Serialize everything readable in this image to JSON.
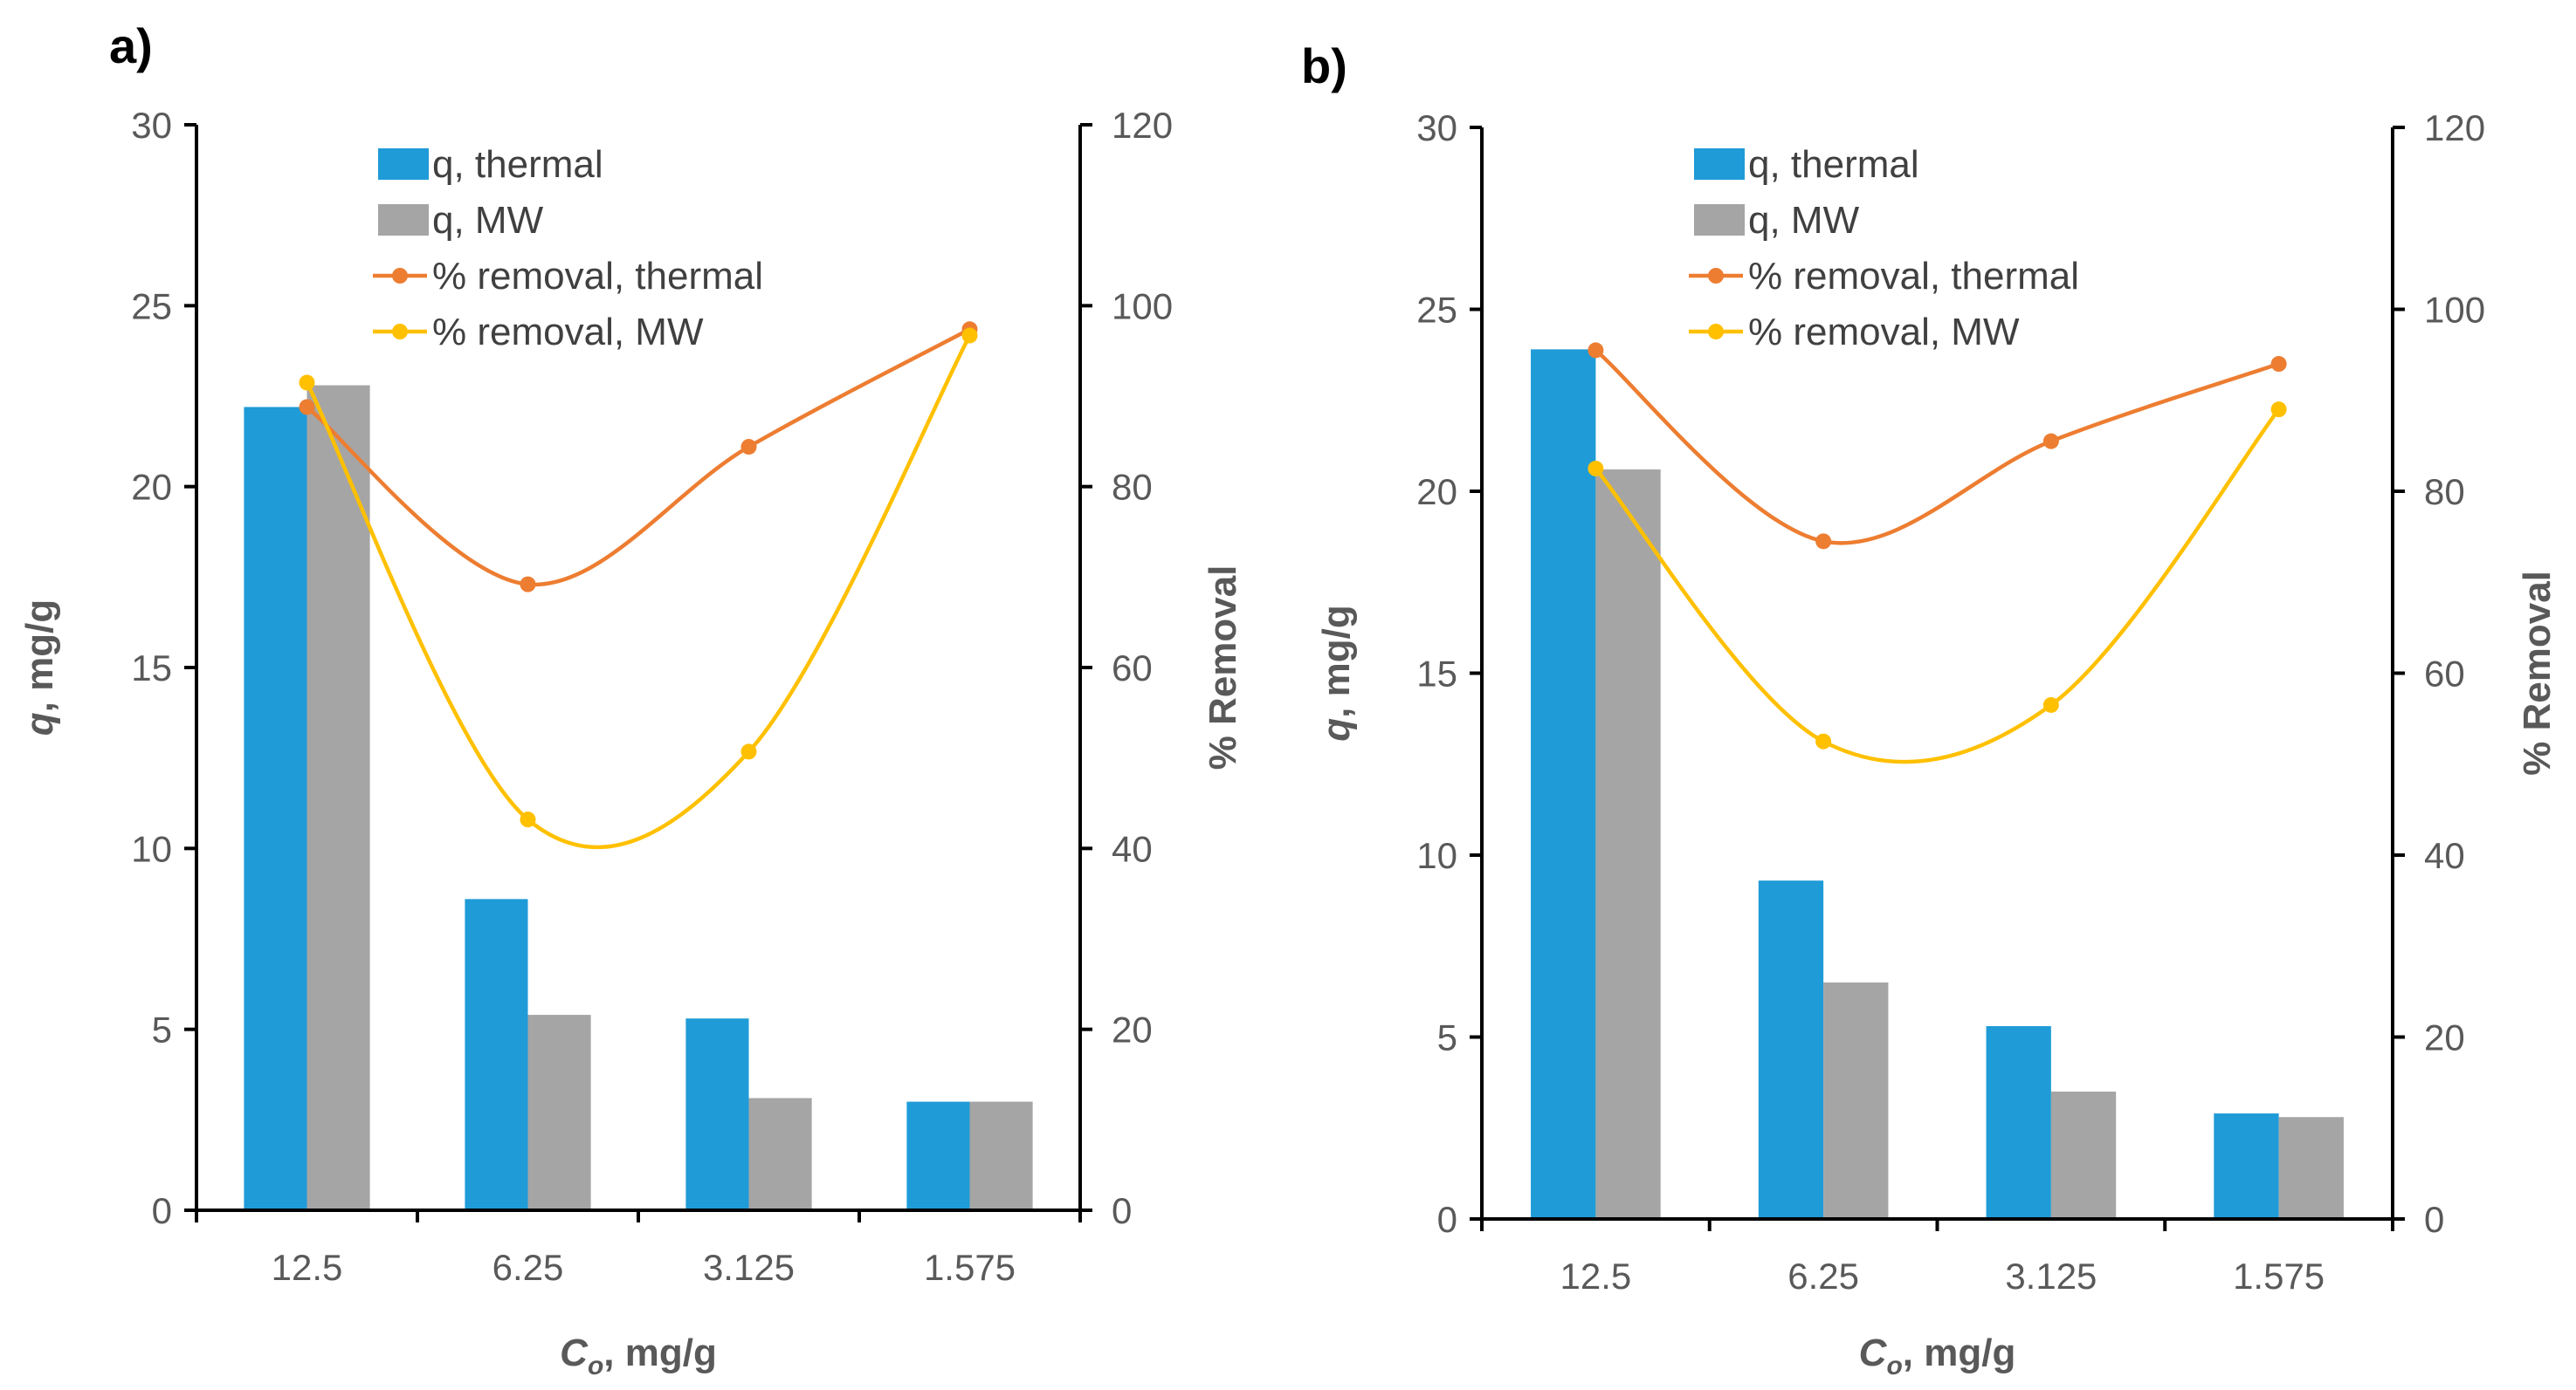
{
  "chart_data": [
    {
      "panel_label": "a)",
      "type": "bar",
      "categories": [
        "12.5",
        "6.25",
        "3.125",
        "1.575"
      ],
      "series": [
        {
          "name": "q, thermal",
          "kind": "bar",
          "axis": "left",
          "color": "#1f9bd7",
          "values": [
            22.2,
            8.6,
            5.3,
            3.0
          ]
        },
        {
          "name": "q, MW",
          "kind": "bar",
          "axis": "left",
          "color": "#a5a5a5",
          "values": [
            22.8,
            5.4,
            3.1,
            3.0
          ]
        },
        {
          "name": "% removal, thermal",
          "kind": "line",
          "axis": "right",
          "color": "#ed7d31",
          "values": [
            88.8,
            69.2,
            84.4,
            97.4
          ]
        },
        {
          "name": "% removal, MW",
          "kind": "line",
          "axis": "right",
          "color": "#ffc000",
          "values": [
            91.5,
            43.2,
            50.7,
            96.7
          ]
        }
      ],
      "xlabel": {
        "main": "C",
        "sub": "o",
        "rest": ", mg/g"
      },
      "ylabel": {
        "main": "q",
        "rest": ", mg/g"
      },
      "y2label": "% Removal",
      "ylim": [
        0,
        30
      ],
      "y2lim": [
        0,
        120
      ],
      "yticks": [
        "0",
        "5",
        "10",
        "15",
        "20",
        "25",
        "30"
      ],
      "y2ticks": [
        "0",
        "20",
        "40",
        "60",
        "80",
        "100",
        "120"
      ],
      "legend_position": "top-center"
    },
    {
      "panel_label": "b)",
      "type": "bar",
      "categories": [
        "12.5",
        "6.25",
        "3.125",
        "1.575"
      ],
      "series": [
        {
          "name": "q, thermal",
          "kind": "bar",
          "axis": "left",
          "color": "#1f9bd7",
          "values": [
            23.9,
            9.3,
            5.3,
            2.9
          ]
        },
        {
          "name": "q, MW",
          "kind": "bar",
          "axis": "left",
          "color": "#a5a5a5",
          "values": [
            20.6,
            6.5,
            3.5,
            2.8
          ]
        },
        {
          "name": "% removal, thermal",
          "kind": "line",
          "axis": "right",
          "color": "#ed7d31",
          "values": [
            95.5,
            74.5,
            85.5,
            94.0
          ]
        },
        {
          "name": "% removal, MW",
          "kind": "line",
          "axis": "right",
          "color": "#ffc000",
          "values": [
            82.5,
            52.5,
            56.5,
            89.0
          ]
        }
      ],
      "xlabel": {
        "main": "C",
        "sub": "o",
        "rest": ", mg/g"
      },
      "ylabel": {
        "main": "q",
        "rest": ", mg/g"
      },
      "y2label": "% Removal",
      "ylim": [
        0,
        30
      ],
      "y2lim": [
        0,
        120
      ],
      "yticks": [
        "0",
        "5",
        "10",
        "15",
        "20",
        "25",
        "30"
      ],
      "y2ticks": [
        "0",
        "20",
        "40",
        "60",
        "80",
        "100",
        "120"
      ],
      "legend_position": "top-center"
    }
  ]
}
